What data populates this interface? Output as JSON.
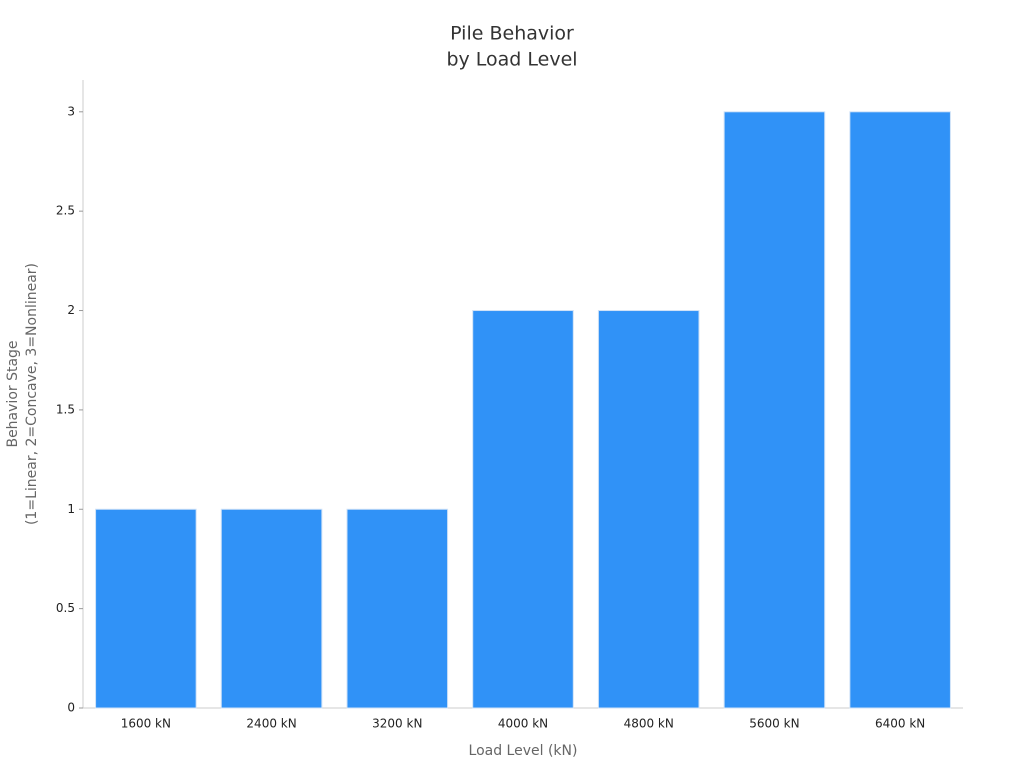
{
  "chart_data": {
    "type": "bar",
    "title": [
      "Pile Behavior",
      "by Load Level"
    ],
    "x_label": "Load Level (kN)",
    "y_label": [
      "Behavior Stage",
      "(1=Linear, 2=Concave, 3=Nonlinear)"
    ],
    "categories": [
      "1600 kN",
      "2400 kN",
      "3200 kN",
      "4000 kN",
      "4800 kN",
      "5600 kN",
      "6400 kN"
    ],
    "values": [
      1,
      1,
      1,
      2,
      2,
      3,
      3
    ],
    "color": "#3092f7",
    "ylim": [
      0,
      3.16
    ],
    "yticks": [
      0,
      0.5,
      1,
      1.5,
      2,
      2.5,
      3
    ],
    "grid": false
  }
}
